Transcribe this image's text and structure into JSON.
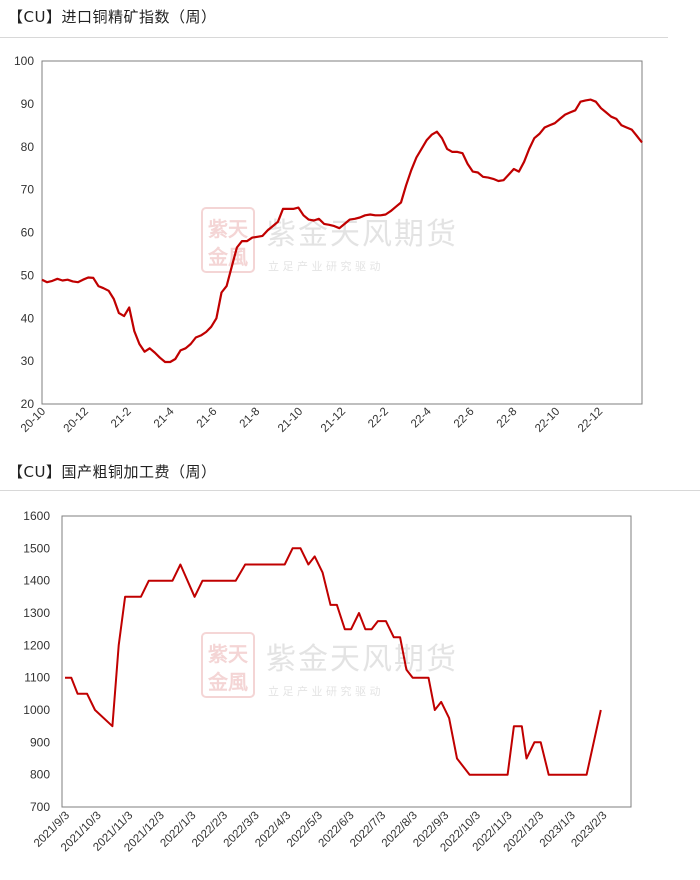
{
  "chart_data": [
    {
      "type": "line",
      "title": "【CU】进口铜精矿指数（周）",
      "ylim": [
        20,
        100
      ],
      "yticks": [
        "100",
        "90",
        "80",
        "70",
        "60",
        "50",
        "40",
        "30",
        "20"
      ],
      "xticks": [
        "20-10",
        "20-12",
        "21-2",
        "21-4",
        "21-6",
        "21-8",
        "21-10",
        "21-12",
        "22-2",
        "22-4",
        "22-6",
        "22-8",
        "22-10",
        "22-12"
      ],
      "grid": false,
      "legend": "none",
      "line_color": "#C00000",
      "values": [
        49.0,
        48.4,
        48.7,
        49.2,
        48.8,
        49.0,
        48.6,
        48.4,
        49.0,
        49.5,
        49.4,
        47.5,
        47.0,
        46.4,
        44.5,
        41.2,
        40.5,
        42.5,
        37.0,
        34.0,
        32.2,
        33.0,
        32.0,
        30.8,
        29.8,
        29.8,
        30.5,
        32.5,
        33.0,
        34.0,
        35.5,
        36.0,
        36.8,
        38.0,
        40.0,
        46.0,
        47.5,
        52.0,
        56.5,
        58.0,
        58.0,
        58.8,
        59.0,
        59.2,
        60.5,
        61.5,
        62.5,
        65.5,
        65.5,
        65.5,
        65.8,
        64.0,
        63.0,
        62.8,
        63.2,
        62.0,
        61.8,
        61.5,
        61.0,
        62.0,
        63.0,
        63.2,
        63.5,
        64.0,
        64.2,
        64.0,
        64.0,
        64.2,
        65.0,
        66.0,
        67.0,
        71.0,
        74.5,
        77.5,
        79.5,
        81.5,
        82.8,
        83.5,
        82.0,
        79.5,
        78.8,
        78.8,
        78.5,
        76.0,
        74.2,
        74.0,
        73.0,
        72.8,
        72.5,
        72.0,
        72.2,
        73.5,
        74.8,
        74.2,
        76.5,
        79.5,
        82.0,
        83.0,
        84.5,
        85.0,
        85.5,
        86.5,
        87.5,
        88.0,
        88.5,
        90.5,
        90.8,
        91.0,
        90.5,
        89.0,
        88.0,
        87.0,
        86.5,
        85.0,
        84.5,
        84.0,
        82.5,
        81.0
      ]
    },
    {
      "type": "line",
      "title": "【CU】国产粗铜加工费（周）",
      "ylim": [
        700,
        1600
      ],
      "yticks": [
        "1600",
        "1500",
        "1400",
        "1300",
        "1200",
        "1100",
        "1000",
        "900",
        "800",
        "700"
      ],
      "xticks": [
        "2021/9/3",
        "2021/10/3",
        "2021/11/3",
        "2021/12/3",
        "2022/1/3",
        "2022/2/3",
        "2022/3/3",
        "2022/4/3",
        "2022/5/3",
        "2022/6/3",
        "2022/7/3",
        "2022/8/3",
        "2022/9/3",
        "2022/10/3",
        "2022/11/3",
        "2022/12/3",
        "2023/1/3",
        "2023/2/3"
      ],
      "grid": false,
      "legend": "none",
      "line_color": "#C00000",
      "points": [
        [
          0,
          1100
        ],
        [
          0.2,
          1100
        ],
        [
          0.4,
          1050
        ],
        [
          0.7,
          1050
        ],
        [
          0.95,
          1000
        ],
        [
          1.5,
          950
        ],
        [
          1.7,
          1200
        ],
        [
          1.9,
          1350
        ],
        [
          2.4,
          1350
        ],
        [
          2.65,
          1400
        ],
        [
          3.4,
          1400
        ],
        [
          3.65,
          1450
        ],
        [
          4.1,
          1350
        ],
        [
          4.35,
          1400
        ],
        [
          5.4,
          1400
        ],
        [
          5.7,
          1450
        ],
        [
          6.95,
          1450
        ],
        [
          7.2,
          1500
        ],
        [
          7.45,
          1500
        ],
        [
          7.7,
          1450
        ],
        [
          7.9,
          1475
        ],
        [
          8.15,
          1425
        ],
        [
          8.4,
          1325
        ],
        [
          8.6,
          1325
        ],
        [
          8.85,
          1250
        ],
        [
          9.05,
          1250
        ],
        [
          9.3,
          1300
        ],
        [
          9.5,
          1250
        ],
        [
          9.7,
          1250
        ],
        [
          9.9,
          1275
        ],
        [
          10.15,
          1275
        ],
        [
          10.4,
          1225
        ],
        [
          10.6,
          1225
        ],
        [
          10.8,
          1125
        ],
        [
          11.0,
          1100
        ],
        [
          11.5,
          1100
        ],
        [
          11.7,
          1000
        ],
        [
          11.9,
          1025
        ],
        [
          12.15,
          975
        ],
        [
          12.4,
          850
        ],
        [
          12.8,
          800
        ],
        [
          14.0,
          800
        ],
        [
          14.2,
          950
        ],
        [
          14.45,
          950
        ],
        [
          14.6,
          850
        ],
        [
          14.85,
          900
        ],
        [
          15.05,
          900
        ],
        [
          15.3,
          800
        ],
        [
          16.5,
          800
        ],
        [
          16.95,
          1000
        ]
      ]
    }
  ],
  "watermark": {
    "seal_top": "紫天",
    "seal_bottom": "金風",
    "company": "紫金天风期货",
    "slogan": "立 足 产 业   研 究 驱 动"
  }
}
